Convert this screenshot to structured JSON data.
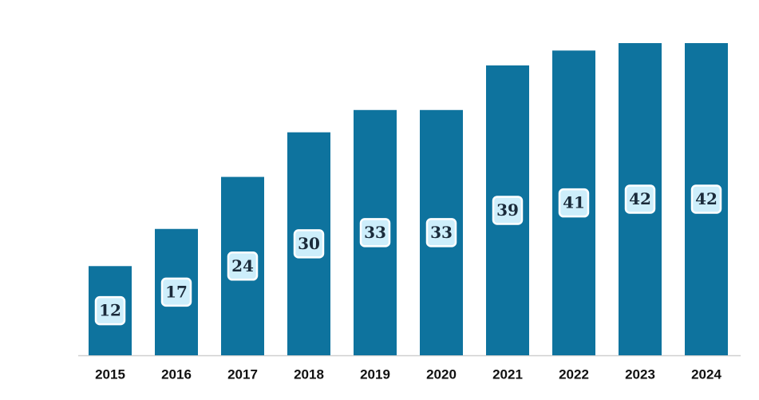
{
  "chart_data": {
    "type": "bar",
    "categories": [
      "2015",
      "2016",
      "2017",
      "2018",
      "2019",
      "2020",
      "2021",
      "2022",
      "2023",
      "2024"
    ],
    "values": [
      12,
      17,
      24,
      30,
      33,
      33,
      39,
      41,
      42,
      42
    ],
    "color": "#0e739e"
  }
}
